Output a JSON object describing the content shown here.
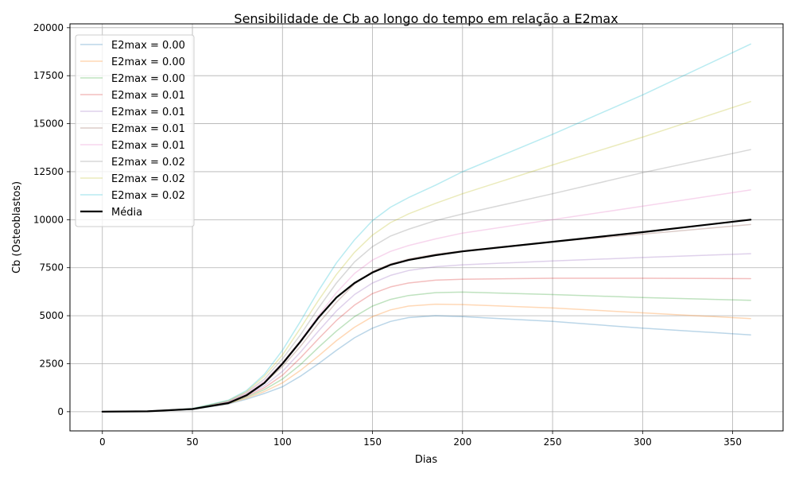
{
  "chart_data": {
    "type": "line",
    "title": "Sensibilidade de Cb ao longo do tempo em relação a E2max",
    "xlabel": "Dias",
    "ylabel": "Cb (Osteoblastos)",
    "xlim": [
      -18,
      378
    ],
    "ylim": [
      -1000,
      20200
    ],
    "x_ticks": [
      0,
      50,
      100,
      150,
      200,
      250,
      300,
      350
    ],
    "y_ticks": [
      0,
      2500,
      5000,
      7500,
      10000,
      12500,
      15000,
      17500,
      20000
    ],
    "grid": true,
    "legend_position": "top-left",
    "x": [
      0,
      25,
      50,
      70,
      80,
      90,
      100,
      110,
      120,
      130,
      140,
      150,
      160,
      170,
      185,
      200,
      250,
      300,
      360
    ],
    "series": [
      {
        "name": "E2max = 0.00",
        "color": "#1f77b4",
        "alpha": 0.3,
        "width": 1.5,
        "values": [
          0,
          20,
          120,
          400,
          650,
          950,
          1300,
          1850,
          2500,
          3200,
          3850,
          4350,
          4700,
          4900,
          5000,
          4950,
          4700,
          4350,
          4000
        ]
      },
      {
        "name": "E2max = 0.00",
        "color": "#ff7f0e",
        "alpha": 0.3,
        "width": 1.5,
        "values": [
          0,
          20,
          125,
          420,
          700,
          1050,
          1500,
          2150,
          2900,
          3700,
          4400,
          4950,
          5300,
          5500,
          5600,
          5580,
          5400,
          5150,
          4850
        ]
      },
      {
        "name": "E2max = 0.00",
        "color": "#2ca02c",
        "alpha": 0.3,
        "width": 1.5,
        "values": [
          0,
          20,
          130,
          440,
          750,
          1150,
          1700,
          2450,
          3350,
          4200,
          4950,
          5500,
          5850,
          6050,
          6200,
          6230,
          6100,
          5950,
          5800
        ]
      },
      {
        "name": "E2max = 0.01",
        "color": "#d62728",
        "alpha": 0.3,
        "width": 1.5,
        "values": [
          0,
          20,
          135,
          460,
          800,
          1250,
          1900,
          2800,
          3800,
          4750,
          5550,
          6150,
          6500,
          6700,
          6850,
          6900,
          6950,
          6950,
          6930
        ]
      },
      {
        "name": "E2max = 0.01",
        "color": "#9467bd",
        "alpha": 0.3,
        "width": 1.5,
        "values": [
          0,
          20,
          140,
          480,
          850,
          1350,
          2100,
          3100,
          4200,
          5250,
          6100,
          6700,
          7100,
          7350,
          7550,
          7650,
          7850,
          8030,
          8230
        ]
      },
      {
        "name": "E2max = 0.01",
        "color": "#8c564b",
        "alpha": 0.3,
        "width": 1.5,
        "values": [
          0,
          20,
          145,
          500,
          900,
          1500,
          2350,
          3400,
          4600,
          5700,
          6650,
          7300,
          7700,
          7950,
          8200,
          8380,
          8850,
          9250,
          9750
        ]
      },
      {
        "name": "E2max = 0.01",
        "color": "#e377c2",
        "alpha": 0.3,
        "width": 1.5,
        "values": [
          0,
          20,
          150,
          520,
          950,
          1600,
          2550,
          3700,
          5000,
          6200,
          7200,
          7900,
          8350,
          8650,
          9000,
          9300,
          10000,
          10700,
          11550
        ]
      },
      {
        "name": "E2max = 0.02",
        "color": "#7f7f7f",
        "alpha": 0.3,
        "width": 1.5,
        "values": [
          0,
          20,
          155,
          550,
          1000,
          1700,
          2750,
          4000,
          5400,
          6700,
          7800,
          8600,
          9150,
          9500,
          9950,
          10300,
          11350,
          12450,
          13650
        ]
      },
      {
        "name": "E2max = 0.02",
        "color": "#bcbd22",
        "alpha": 0.3,
        "width": 1.5,
        "values": [
          0,
          20,
          160,
          580,
          1050,
          1850,
          2950,
          4350,
          5800,
          7150,
          8300,
          9200,
          9850,
          10300,
          10850,
          11350,
          12850,
          14300,
          16150
        ]
      },
      {
        "name": "E2max = 0.02",
        "color": "#17becf",
        "alpha": 0.3,
        "width": 1.5,
        "values": [
          0,
          20,
          165,
          600,
          1100,
          1950,
          3200,
          4700,
          6300,
          7750,
          8950,
          9950,
          10650,
          11150,
          11800,
          12500,
          14450,
          16500,
          19150
        ]
      },
      {
        "name": "Média",
        "color": "#000000",
        "alpha": 1.0,
        "width": 2.2,
        "values": [
          0,
          20,
          140,
          450,
          850,
          1500,
          2500,
          3650,
          4900,
          5950,
          6700,
          7250,
          7650,
          7900,
          8150,
          8350,
          8850,
          9350,
          10000
        ]
      }
    ]
  }
}
